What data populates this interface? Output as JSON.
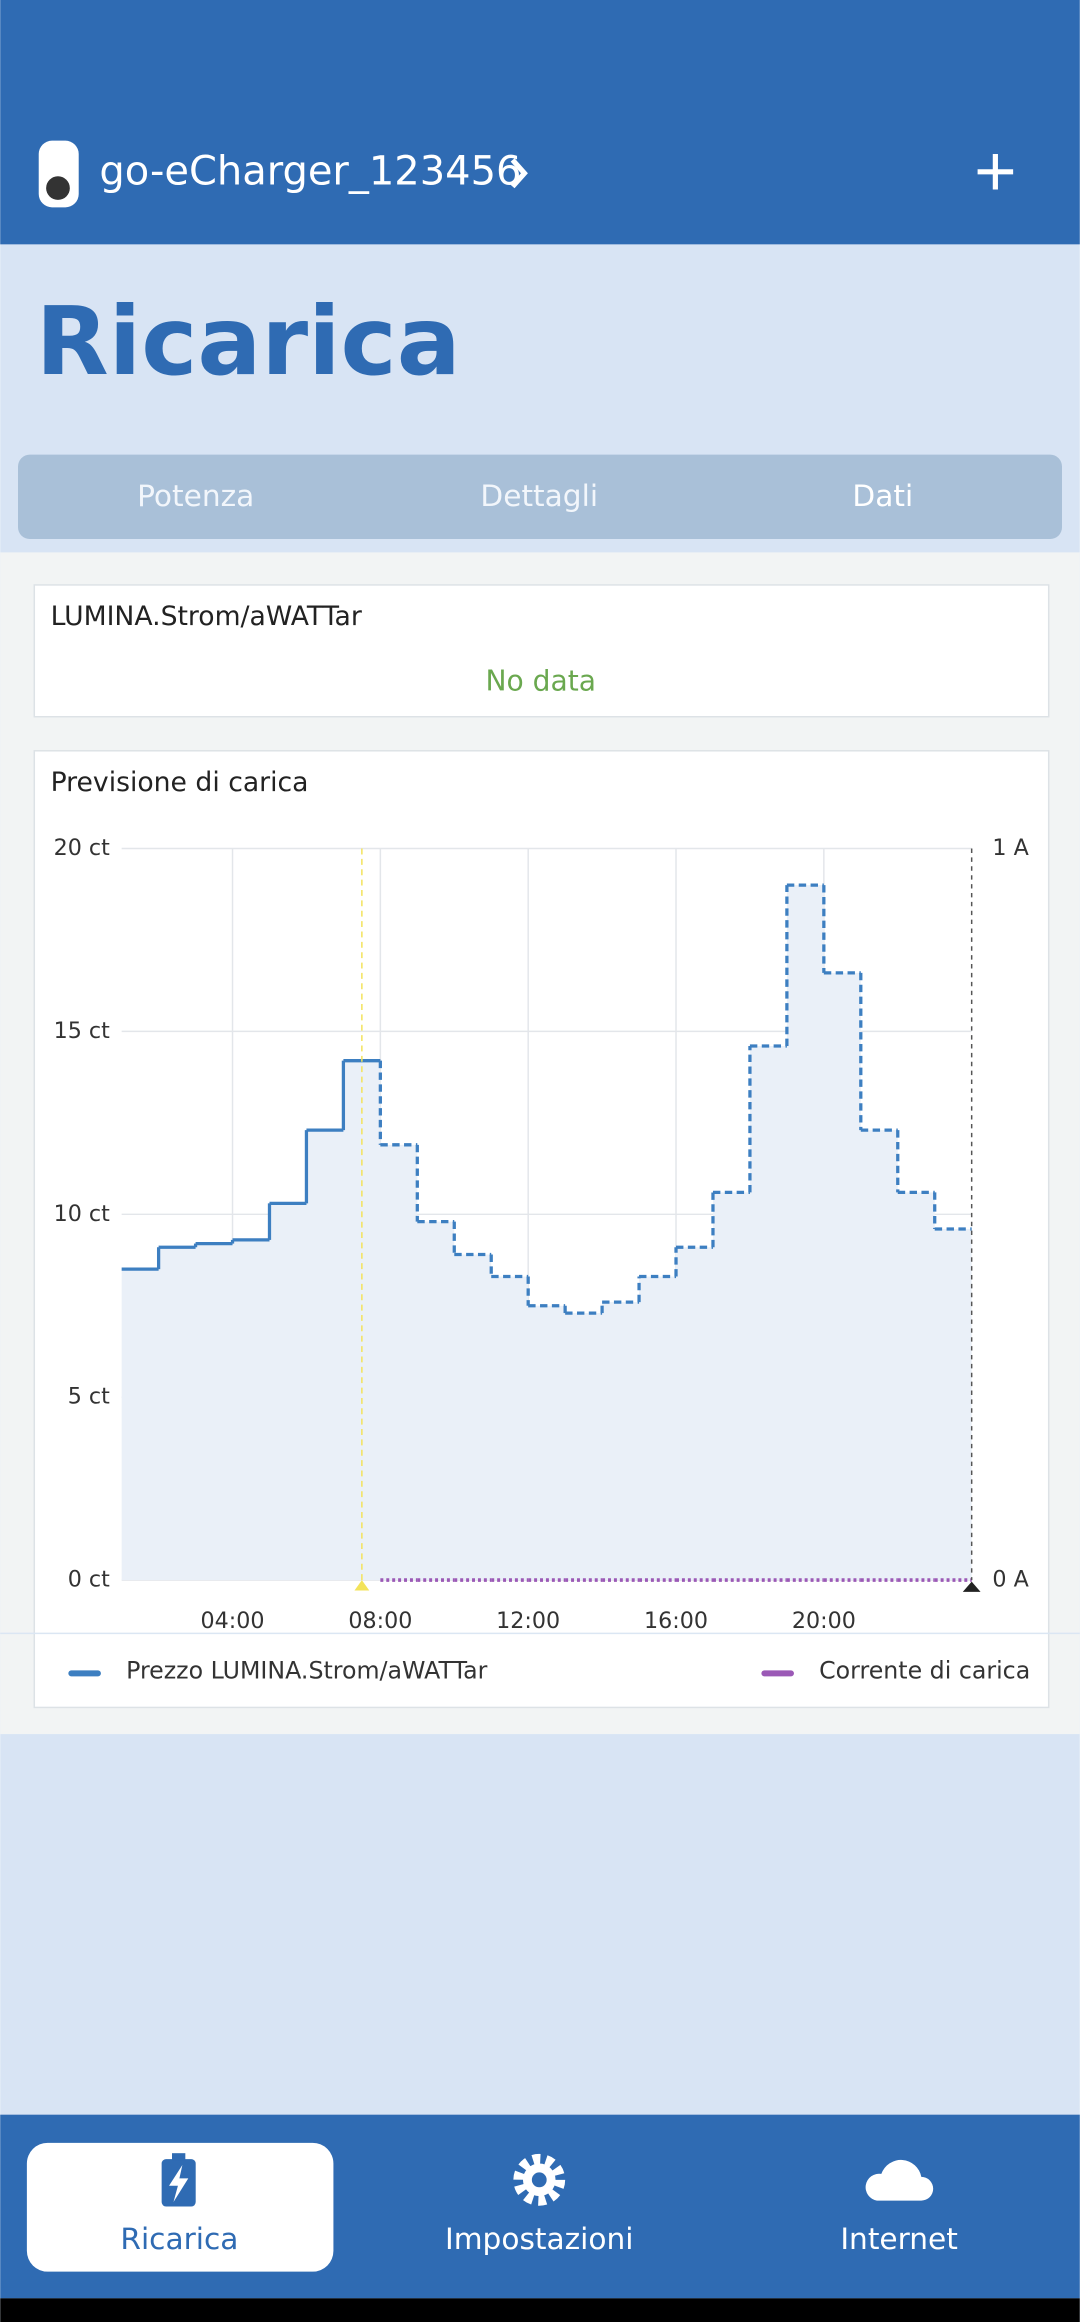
{
  "header": {
    "device": "go-eCharger_123456"
  },
  "page_title": "Ricarica",
  "tabs": [
    {
      "label": "Potenza"
    },
    {
      "label": "Dettagli"
    },
    {
      "label": "Dati",
      "active": true
    }
  ],
  "tariff_card": {
    "title": "LUMINA.Strom/aWATTar",
    "status": "No data"
  },
  "chart_data": {
    "type": "step",
    "title": "Previsione di carica",
    "x": [
      1,
      2,
      3,
      4,
      5,
      6,
      7,
      8,
      9,
      10,
      11,
      12,
      13,
      14,
      15,
      16,
      17,
      18,
      19,
      20,
      21,
      22,
      23
    ],
    "series": [
      {
        "name": "Prezzo LUMINA.Strom/aWATTar",
        "color": "#3d7fc1",
        "values": [
          8.5,
          9.1,
          9.2,
          9.3,
          10.3,
          12.3,
          14.2,
          11.9,
          9.8,
          8.9,
          8.3,
          7.5,
          7.3,
          7.6,
          8.3,
          9.1,
          10.6,
          14.6,
          19.0,
          16.6,
          12.3,
          10.6,
          9.6
        ]
      },
      {
        "name": "Corrente di carica",
        "color": "#9b59b6",
        "axis": "y2",
        "values": [
          null,
          null,
          null,
          null,
          null,
          null,
          null,
          0,
          0,
          0,
          0,
          0,
          0,
          0,
          0,
          0,
          0,
          0,
          0,
          0,
          0,
          0,
          0
        ]
      }
    ],
    "xlim": [
      1,
      24
    ],
    "xticks": [
      {
        "value": 4,
        "label": "04:00"
      },
      {
        "value": 8,
        "label": "08:00"
      },
      {
        "value": 12,
        "label": "12:00"
      },
      {
        "value": 16,
        "label": "16:00"
      },
      {
        "value": 20,
        "label": "20:00"
      }
    ],
    "ylim": [
      0,
      20
    ],
    "yticks": [
      {
        "value": 0,
        "label": "0 ct"
      },
      {
        "value": 5,
        "label": "5 ct"
      },
      {
        "value": 10,
        "label": "10 ct"
      },
      {
        "value": 15,
        "label": "15 ct"
      },
      {
        "value": 20,
        "label": "20 ct"
      }
    ],
    "y2lim": [
      0,
      1
    ],
    "y2ticks": [
      {
        "value": 0,
        "label": "0 A"
      },
      {
        "value": 1,
        "label": "1 A"
      }
    ],
    "dashed_from": 8,
    "current_time": 7.5,
    "grid": true
  },
  "nav": [
    {
      "label": "Ricarica",
      "active": true
    },
    {
      "label": "Impostazioni"
    },
    {
      "label": "Internet"
    }
  ]
}
